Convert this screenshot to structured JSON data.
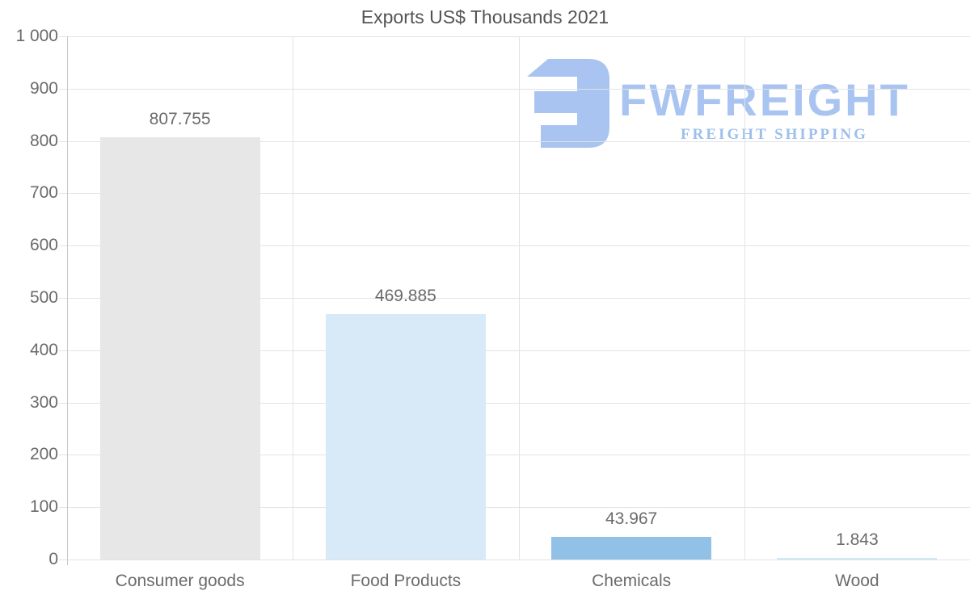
{
  "title": "Exports US$ Thousands 2021",
  "logo": {
    "wordmark": "FWFREIGHT",
    "tagline": "FREIGHT SHIPPING",
    "wordmark_color": "#a9c4f0",
    "tagline_color": "#9cbfec",
    "icon": "fwfreight-mirrored-e-mark"
  },
  "colors": {
    "grid": "#e3e3e3",
    "axis": "#c8c8c8",
    "label_text": "#6b6b6b",
    "title_text": "#545454",
    "background": "#ffffff"
  },
  "chart_data": {
    "type": "bar",
    "title": "Exports US$ Thousands 2021",
    "categories": [
      "Consumer goods",
      "Food Products",
      "Chemicals",
      "Wood"
    ],
    "values": [
      807.755,
      469.885,
      43.967,
      1.843
    ],
    "value_labels": [
      "807.755",
      "469.885",
      "43.967",
      "1.843"
    ],
    "bar_colors": [
      "#e7e7e7",
      "#d8e9f8",
      "#92c1e8",
      "#cfe9f5"
    ],
    "xlabel": "",
    "ylabel": "",
    "ylim": [
      0,
      1000
    ],
    "y_ticks": [
      {
        "value": 0,
        "label": "0"
      },
      {
        "value": 100,
        "label": "100"
      },
      {
        "value": 200,
        "label": "200"
      },
      {
        "value": 300,
        "label": "300"
      },
      {
        "value": 400,
        "label": "400"
      },
      {
        "value": 500,
        "label": "500"
      },
      {
        "value": 600,
        "label": "600"
      },
      {
        "value": 700,
        "label": "700"
      },
      {
        "value": 800,
        "label": "800"
      },
      {
        "value": 900,
        "label": "900"
      },
      {
        "value": 1000,
        "label": "1 000"
      }
    ],
    "grid": true,
    "legend_position": "none"
  }
}
